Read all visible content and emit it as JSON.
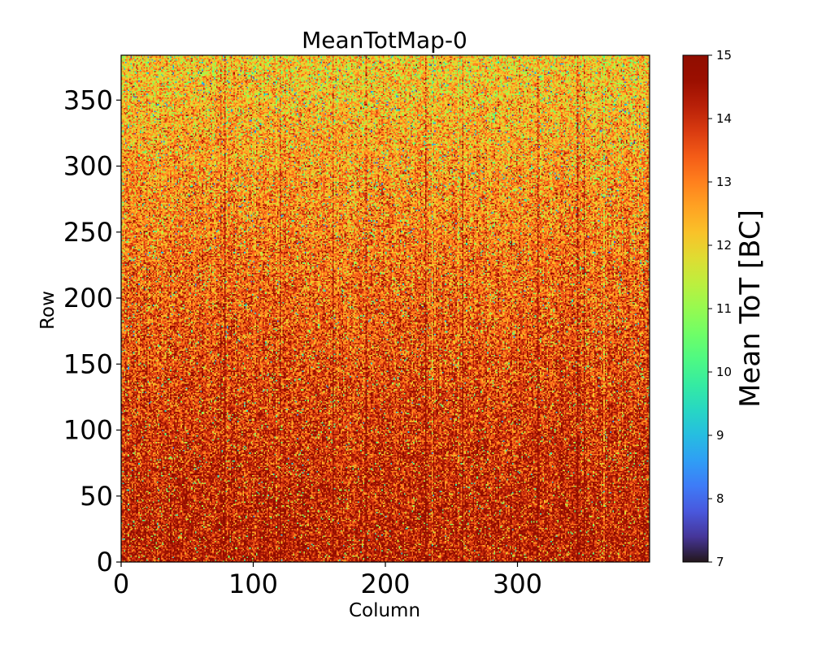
{
  "chart_data": {
    "type": "heatmap",
    "title": "MeanTotMap-0",
    "xlabel": "Column",
    "ylabel": "Row",
    "xlim": [
      0,
      400
    ],
    "ylim": [
      0,
      384
    ],
    "x_ticks": [
      0,
      100,
      200,
      300
    ],
    "y_ticks": [
      0,
      50,
      100,
      150,
      200,
      250,
      300,
      350
    ],
    "colorbar": {
      "label": "Mean ToT [BC]",
      "range": [
        7,
        15
      ],
      "ticks": [
        7,
        8,
        9,
        10,
        11,
        12,
        13,
        14,
        15
      ],
      "colormap": "turbo"
    },
    "grid": {
      "columns": 400,
      "rows": 384,
      "typical_value_range": [
        10,
        15
      ],
      "trend": "values near 14-15 at low rows, decreasing toward about 11-12 at high rows; noisy pixel-level variation with darker vertical stripes"
    }
  }
}
